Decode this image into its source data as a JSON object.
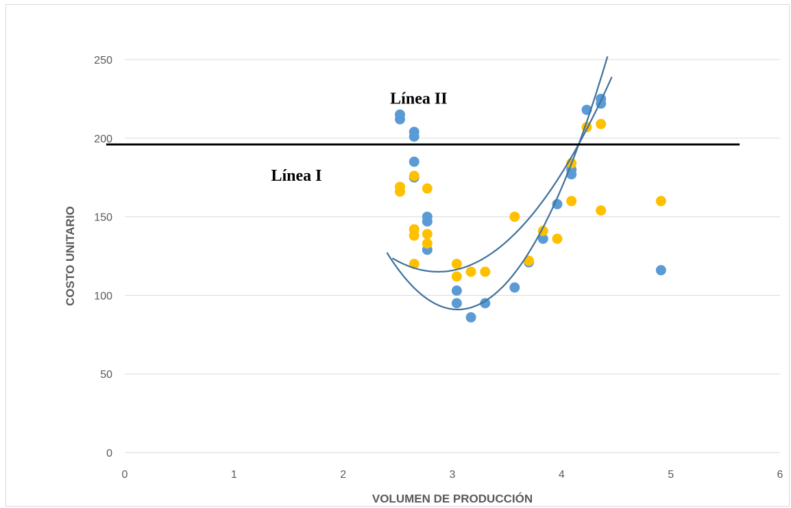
{
  "chart_data": {
    "type": "scatter",
    "xlabel": "VOLUMEN DE PRODUCCIÓN",
    "ylabel": "COSTO UNITARIO",
    "xlim": [
      0,
      6
    ],
    "ylim": [
      0,
      250
    ],
    "x_ticks": [
      "0",
      "1",
      "2",
      "3",
      "4",
      "5",
      "6"
    ],
    "y_ticks": [
      "0",
      "50",
      "100",
      "150",
      "200",
      "250"
    ],
    "grid": "horizontal",
    "colors": {
      "series_blue": "#5b9bd5",
      "series_gold": "#ffc000",
      "curve": "#41719c",
      "threshold": "#000000",
      "grid": "#d9d9d9",
      "text": "#595959"
    },
    "series": [
      {
        "color_key": "series_blue",
        "points": [
          [
            2.52,
            215
          ],
          [
            2.52,
            212
          ],
          [
            2.65,
            204
          ],
          [
            2.65,
            201
          ],
          [
            2.65,
            185
          ],
          [
            2.65,
            175
          ],
          [
            2.77,
            150
          ],
          [
            2.77,
            147
          ],
          [
            2.77,
            129
          ],
          [
            3.04,
            103
          ],
          [
            3.04,
            95
          ],
          [
            3.17,
            86
          ],
          [
            3.3,
            95
          ],
          [
            3.57,
            105
          ],
          [
            3.7,
            121
          ],
          [
            3.83,
            136
          ],
          [
            3.96,
            158
          ],
          [
            4.09,
            180
          ],
          [
            4.09,
            177
          ],
          [
            4.23,
            218
          ],
          [
            4.36,
            225
          ],
          [
            4.36,
            222
          ],
          [
            4.91,
            116
          ]
        ]
      },
      {
        "color_key": "series_gold",
        "points": [
          [
            2.52,
            169
          ],
          [
            2.52,
            166
          ],
          [
            2.65,
            176
          ],
          [
            2.65,
            142
          ],
          [
            2.65,
            138
          ],
          [
            2.65,
            120
          ],
          [
            2.77,
            168
          ],
          [
            2.77,
            139
          ],
          [
            2.77,
            133
          ],
          [
            3.04,
            120
          ],
          [
            3.04,
            112
          ],
          [
            3.17,
            115
          ],
          [
            3.3,
            115
          ],
          [
            3.57,
            150
          ],
          [
            3.7,
            122
          ],
          [
            3.83,
            141
          ],
          [
            3.96,
            136
          ],
          [
            4.09,
            184
          ],
          [
            4.09,
            160
          ],
          [
            4.23,
            207
          ],
          [
            4.36,
            209
          ],
          [
            4.36,
            154
          ],
          [
            4.91,
            160
          ]
        ]
      }
    ],
    "curves": [
      {
        "from_x": 2.4,
        "to_x": 4.42,
        "vertex": [
          3.05,
          91
        ],
        "through": [
          4.42,
          252
        ]
      },
      {
        "from_x": 2.45,
        "to_x": 4.46,
        "vertex": [
          2.87,
          115
        ],
        "through": [
          4.46,
          239
        ]
      }
    ],
    "threshold": {
      "y": 196,
      "from_x": -0.17,
      "to_x": 5.63
    },
    "annotations": [
      {
        "text": "Línea II",
        "x": 2.43,
        "y": 222
      },
      {
        "text": "Línea I",
        "x": 1.34,
        "y": 173
      }
    ]
  }
}
